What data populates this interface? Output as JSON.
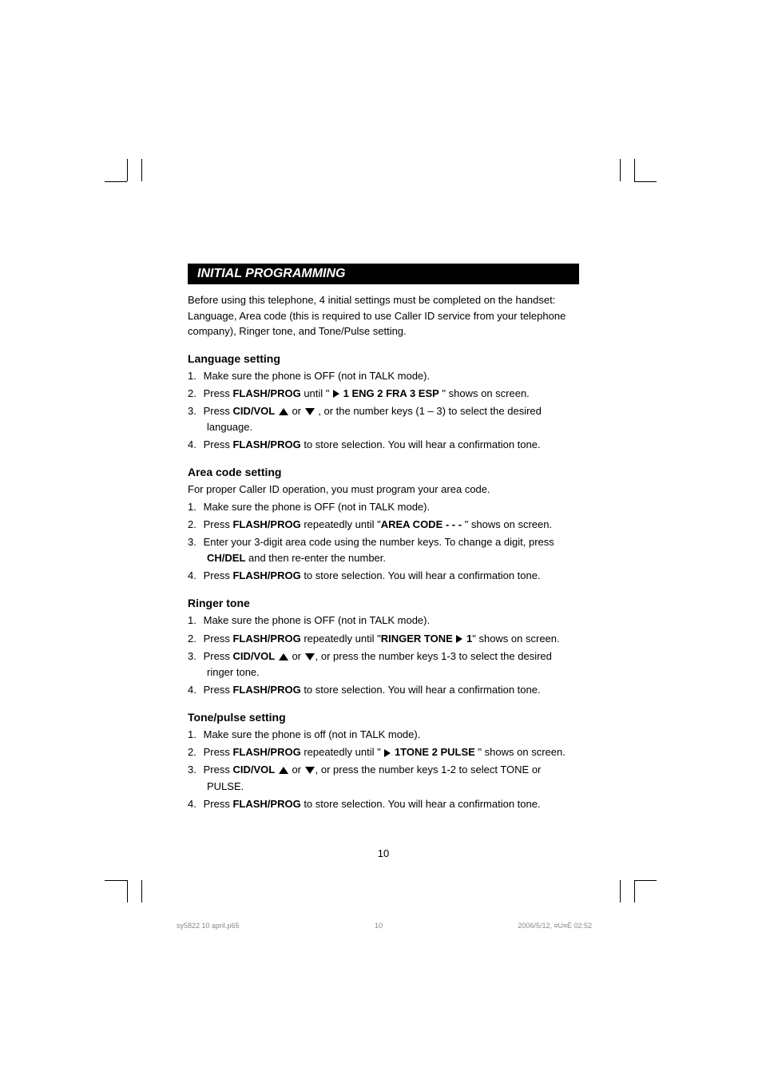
{
  "header": {
    "title": "INITIAL PROGRAMMING"
  },
  "intro": "Before using this telephone, 4 initial settings must be completed on the handset: Language, Area code (this is required to use Caller ID service from your telephone company), Ringer tone,  and Tone/Pulse setting.",
  "sections": {
    "language": {
      "heading": "Language setting",
      "step1_num": "1.",
      "step1_text": "Make sure the phone is OFF (not in TALK mode).",
      "step2_num": "2.",
      "step2_a": "Press ",
      "step2_b": "FLASH/PROG",
      "step2_c": " until \" ",
      "step2_d": " 1 ENG  2  FRA  3  ESP",
      "step2_e": " \" shows on screen.",
      "step3_num": "3.",
      "step3_a": "Press ",
      "step3_b": "CID/VOL",
      "step3_c": " or ",
      "step3_d": " , or the number keys (1 – 3) to select the desired language.",
      "step4_num": "4.",
      "step4_a": "Press ",
      "step4_b": "FLASH/PROG",
      "step4_c": " to store selection. You will hear a confirmation tone."
    },
    "areacode": {
      "heading": "Area code setting",
      "intro": "For proper Caller ID operation, you must program your area code.",
      "step1_num": "1.",
      "step1_text": "Make sure the phone is OFF (not in TALK mode).",
      "step2_num": "2.",
      "step2_a": "Press ",
      "step2_b": "FLASH/PROG",
      "step2_c": " repeatedly until \"",
      "step2_d": "AREA CODE - - -",
      "step2_e": " \" shows on screen.",
      "step3_num": "3.",
      "step3_a": "Enter your 3-digit area code using the number keys. To change a digit, press ",
      "step3_b": "CH/DEL",
      "step3_c": " and then re-enter the number.",
      "step4_num": "4.",
      "step4_a": "Press ",
      "step4_b": "FLASH/PROG",
      "step4_c": " to store selection. You will hear a confirmation tone."
    },
    "ringer": {
      "heading": "Ringer tone",
      "step1_num": "1.",
      "step1_text": "Make sure the phone is OFF (not in TALK mode).",
      "step2_num": "2.",
      "step2_a": "Press ",
      "step2_b": "FLASH/PROG",
      "step2_c": " repeatedly until \"",
      "step2_d": "RINGER TONE ",
      "step2_e": " 1",
      "step2_f": "\" shows on screen.",
      "step3_num": "3.",
      "step3_a": "Press ",
      "step3_b": "CID/VOL",
      "step3_c": " or ",
      "step3_d": ", or press the number keys 1-3 to select the desired ringer tone.",
      "step4_num": "4.",
      "step4_a": "Press ",
      "step4_b": "FLASH/PROG",
      "step4_c": " to store selection. You will hear a confirmation tone."
    },
    "tonepulse": {
      "heading": "Tone/pulse setting",
      "step1_num": "1.",
      "step1_text": "Make sure the phone is off (not in TALK mode).",
      "step2_num": "2.",
      "step2_a": "Press ",
      "step2_b": "FLASH/PROG",
      "step2_c": " repeatedly until \" ",
      "step2_d": " 1TONE  2 PULSE",
      "step2_e": " \" shows on screen.",
      "step3_num": "3.",
      "step3_a": "Press ",
      "step3_b": "CID/VOL",
      "step3_c": " or ",
      "step3_d": ", or press the number keys 1-2 to select TONE or PULSE.",
      "step4_num": "4.",
      "step4_a": "Press ",
      "step4_b": "FLASH/PROG",
      "step4_c": " to store selection. You will hear a confirmation tone."
    }
  },
  "page_number": "10",
  "footer": {
    "filename": "sy5822 10 april.p65",
    "page": "10",
    "timestamp": "2006/5/12, ¤U¤È 02:52"
  }
}
